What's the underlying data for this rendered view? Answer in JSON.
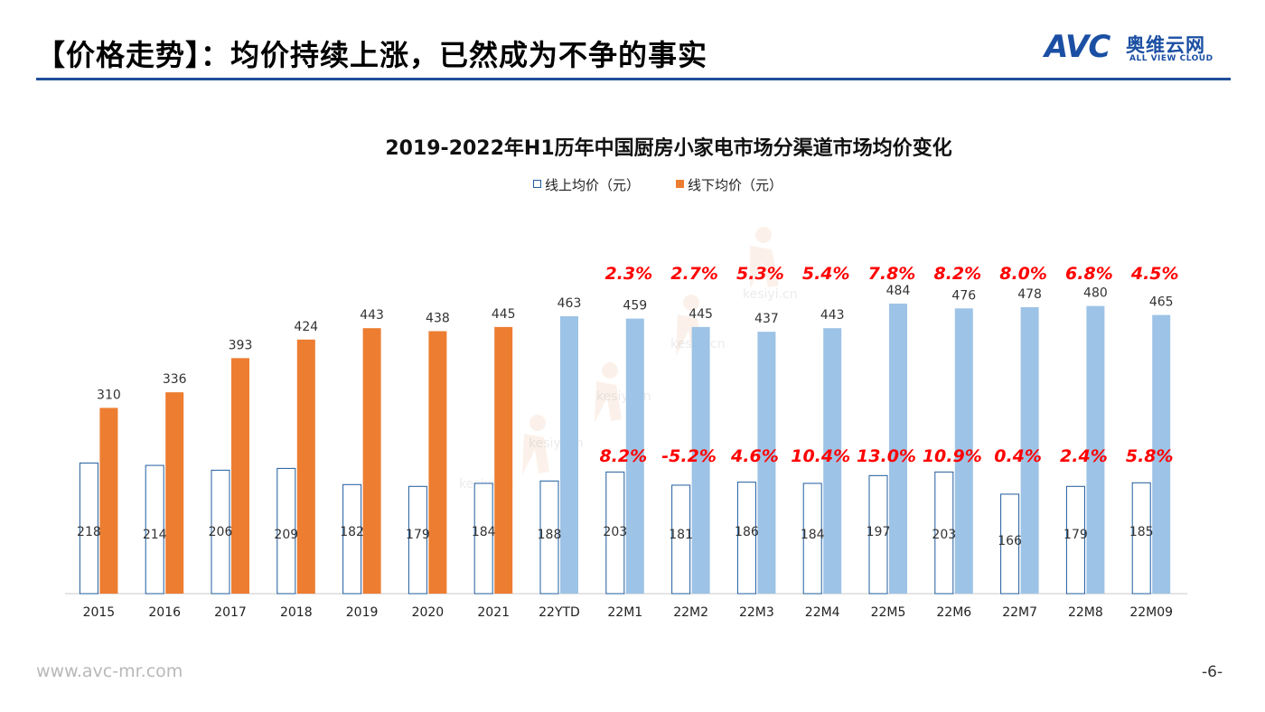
{
  "header": {
    "title": "【价格走势】：均价持续上涨，已然成为不争的事实",
    "logo_mark": "AVC",
    "logo_cn": "奥维云网",
    "logo_en": "ALL VIEW CLOUD"
  },
  "footer": {
    "url": "www.avc-mr.com",
    "page": "-6-"
  },
  "watermark": {
    "text": "kesiyi.cn"
  },
  "colors": {
    "offline": "#ed7d31",
    "online_future": "#9dc3e6",
    "online_outline": "#1f5c9e",
    "growth_label": "#ff0000",
    "header_rule": "#1f4e9a"
  },
  "chart_data": {
    "type": "bar",
    "title": "2019-2022年H1历年中国厨房小家电市场分渠道市场均价变化",
    "xlabel": "",
    "ylabel": "",
    "ylim": [
      0,
      500
    ],
    "legend_position": "top-center",
    "categories": [
      "2015",
      "2016",
      "2017",
      "2018",
      "2019",
      "2020",
      "2021",
      "22YTD",
      "22M1",
      "22M2",
      "22M3",
      "22M4",
      "22M5",
      "22M6",
      "22M7",
      "22M8",
      "22M09"
    ],
    "series": [
      {
        "name": "线上均价（元）",
        "values": [
          218,
          214,
          206,
          209,
          182,
          179,
          184,
          188,
          203,
          181,
          186,
          184,
          197,
          203,
          166,
          179,
          185
        ],
        "growth_labels": [
          "",
          "",
          "",
          "",
          "",
          "",
          "",
          "",
          "8.2%",
          "-5.2%",
          "4.6%",
          "10.4%",
          "13.0%",
          "10.9%",
          "0.4%",
          "2.4%",
          "5.8%"
        ]
      },
      {
        "name": "线下均价（元）",
        "values": [
          310,
          336,
          393,
          424,
          443,
          438,
          445,
          463,
          459,
          445,
          437,
          443,
          484,
          476,
          478,
          480,
          465
        ],
        "growth_labels": [
          "",
          "",
          "",
          "",
          "",
          "",
          "",
          "",
          "2.3%",
          "2.7%",
          "5.3%",
          "5.4%",
          "7.8%",
          "8.2%",
          "8.0%",
          "6.8%",
          "4.5%"
        ]
      }
    ]
  }
}
